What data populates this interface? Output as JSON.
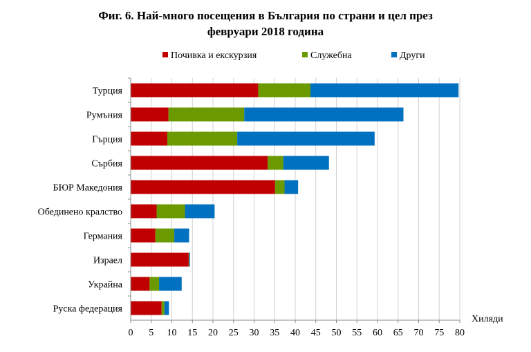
{
  "chart_data": {
    "type": "bar",
    "orientation": "horizontal",
    "stacked": true,
    "title_lines": [
      "Фиг. 6. Най-много посещения в България по страни и цел през",
      "февруари 2018 година"
    ],
    "xlabel": "Хиляди",
    "xlim": [
      0,
      80
    ],
    "xticks": [
      0,
      5,
      10,
      15,
      20,
      25,
      30,
      35,
      40,
      45,
      50,
      55,
      60,
      65,
      70,
      75,
      80
    ],
    "grid": true,
    "legend_position": "top",
    "categories": [
      "Турция",
      "Румъния",
      "Гърция",
      "Сърбия",
      "БЮР Македония",
      "Обединено кралство",
      "Германия",
      "Израел",
      "Украйна",
      "Руска федерация"
    ],
    "series": [
      {
        "name": "Почивка и екскурзия",
        "color": "#c00000",
        "values": [
          31.0,
          9.2,
          8.9,
          33.3,
          35.1,
          6.3,
          6.0,
          14.1,
          4.6,
          7.5
        ]
      },
      {
        "name": "Служебна",
        "color": "#6a9a00",
        "values": [
          12.7,
          18.4,
          17.0,
          3.8,
          2.3,
          6.9,
          4.6,
          0.1,
          2.3,
          0.7
        ]
      },
      {
        "name": "Други",
        "color": "#0070c0",
        "values": [
          36.0,
          38.7,
          33.4,
          11.1,
          3.3,
          7.2,
          3.6,
          0.2,
          5.5,
          1.1
        ]
      }
    ]
  }
}
